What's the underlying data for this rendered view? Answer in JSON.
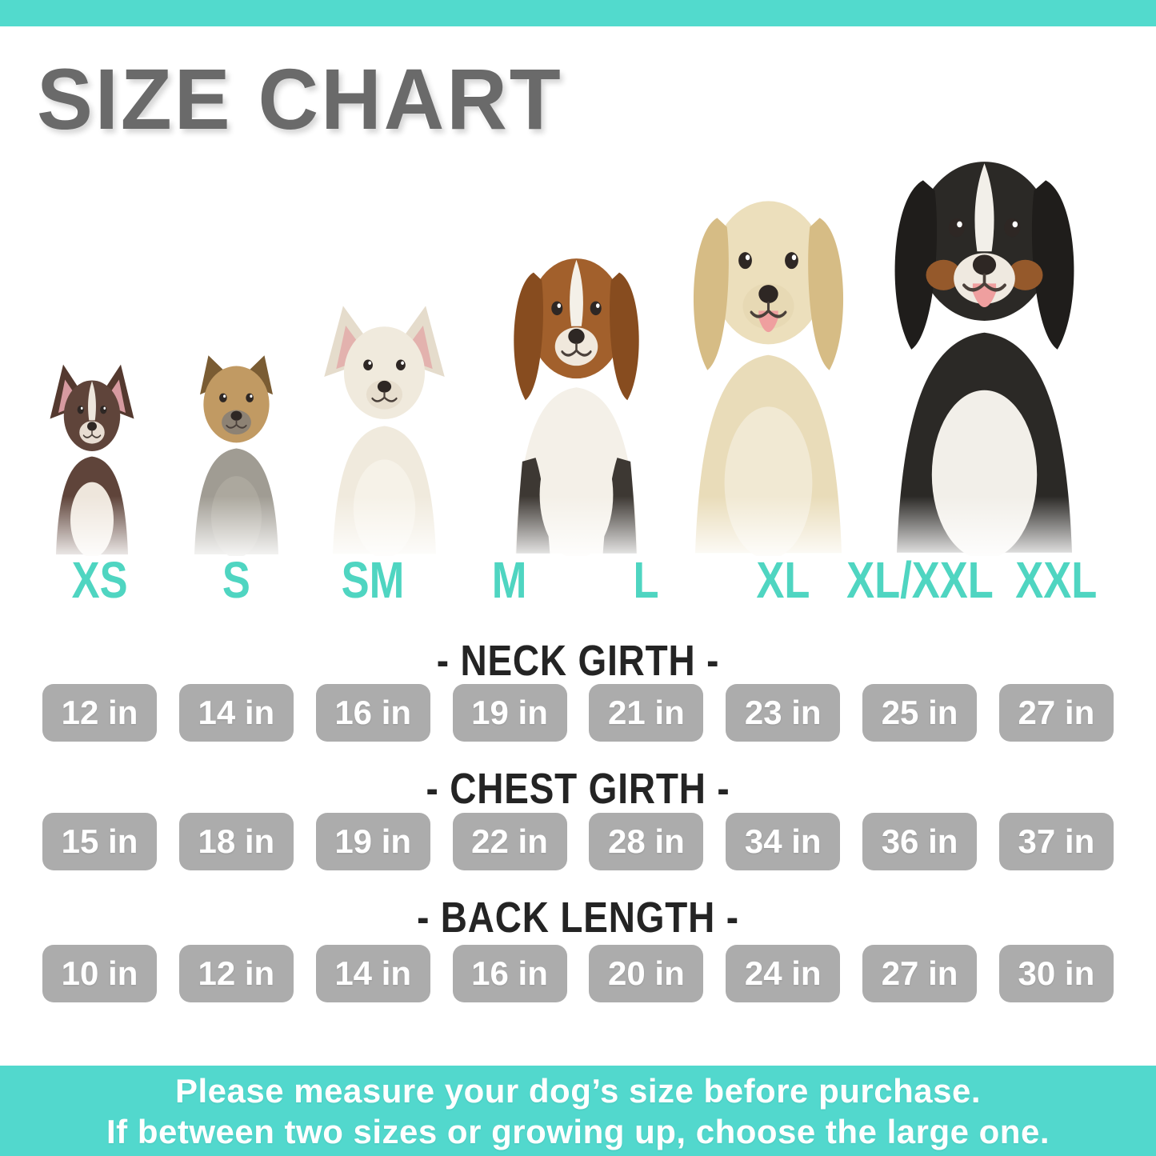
{
  "header": {
    "title": "SIZE CHART"
  },
  "size_labels": [
    "XS",
    "S",
    "SM",
    "M",
    "L",
    "XL",
    "XL/XXL",
    "XXL"
  ],
  "dogs": [
    {
      "name": "chihuahua"
    },
    {
      "name": "yorkshire-terrier"
    },
    {
      "name": "french-bulldog"
    },
    {
      "name": "beagle"
    },
    {
      "name": "golden-retriever"
    },
    {
      "name": "bernese-mountain-dog"
    }
  ],
  "measurements": [
    {
      "label": "- NECK GIRTH -",
      "values": [
        "12 in",
        "14 in",
        "16 in",
        "19 in",
        "21 in",
        "23 in",
        "25 in",
        "27 in"
      ]
    },
    {
      "label": "- CHEST GIRTH -",
      "values": [
        "15 in",
        "18 in",
        "19 in",
        "22 in",
        "28 in",
        "34 in",
        "36 in",
        "37 in"
      ]
    },
    {
      "label": "- BACK LENGTH -",
      "values": [
        "10 in",
        "12 in",
        "14 in",
        "16 in",
        "20 in",
        "24 in",
        "27 in",
        "30 in"
      ]
    }
  ],
  "footer": {
    "line1": "Please measure your dog’s size before purchase.",
    "line2": "If between two sizes or growing up, choose the large one."
  },
  "colors": {
    "accent_teal": "#52dacd",
    "label_teal": "#4fd5c1",
    "box_gray": "#acacac",
    "title_gray": "#6a6a6a",
    "header_dark": "#242424"
  },
  "chart_data": {
    "type": "table",
    "title": "SIZE CHART",
    "columns": [
      "XS",
      "S",
      "SM",
      "M",
      "L",
      "XL",
      "XL/XXL",
      "XXL"
    ],
    "rows": [
      {
        "name": "NECK GIRTH",
        "unit": "in",
        "values": [
          12,
          14,
          16,
          19,
          21,
          23,
          25,
          27
        ]
      },
      {
        "name": "CHEST GIRTH",
        "unit": "in",
        "values": [
          15,
          18,
          19,
          22,
          28,
          34,
          36,
          37
        ]
      },
      {
        "name": "BACK LENGTH",
        "unit": "in",
        "values": [
          10,
          12,
          14,
          16,
          20,
          24,
          27,
          30
        ]
      }
    ]
  }
}
